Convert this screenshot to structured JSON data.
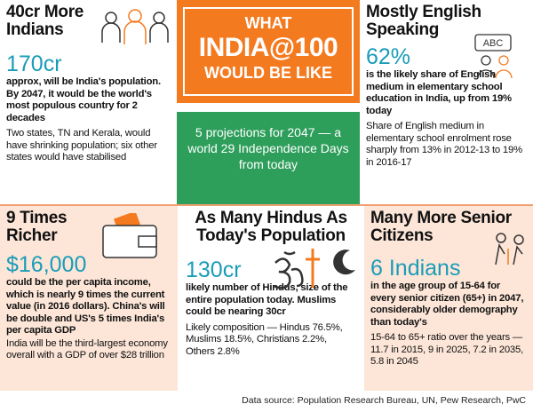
{
  "header": {
    "line1": "WHAT",
    "line2": "INDIA@100",
    "line3": "WOULD BE LIKE",
    "subtitle": "5 projections for 2047 — a world 29 Independence Days from today"
  },
  "panels": [
    {
      "title": "40cr More Indians",
      "figure": "170cr",
      "lead": "approx, will be India's population. By 2047, it would be the world's most populous country for 2 decades",
      "note": "Two states, TN and Kerala, would have shrinking population; six other states would have stabilised"
    },
    {
      "title": "Mostly English Speaking",
      "icon_label": "ABC",
      "figure": "62%",
      "lead": "is the likely share of English medium in elementary school education in India, up from 19% today",
      "note": "Share of English medium in elementary school enrolment rose sharply from 13% in 2012-13 to 19% in 2016-17"
    },
    {
      "title": "9 Times Richer",
      "figure": "$16,000",
      "lead": "could be the per capita income, which is nearly 9 times the current value (in 2016 dollars). China's will be double and US's 5 times India's per capita GDP",
      "note": "India will be the third-largest economy overall with a GDP of over $28 trillion"
    },
    {
      "title": "As Many Hindus As Today's Population",
      "figure": "130cr",
      "lead": "likely number of Hindus, size of the entire population today. Muslims could be nearing 30cr",
      "note": "Likely composition — Hindus 76.5%, Muslims 18.5%, Christians 2.2%, Others 2.8%"
    },
    {
      "title": "Many More Senior Citizens",
      "figure": "6 Indians",
      "lead": "in the age group of 15-64 for every senior citizen (65+) in 2047, considerably older demography than today's",
      "note": "15-64 to 65+ ratio over the years — 11.7 in 2015, 9 in 2025, 7.2 in 2035, 5.8 in 2045"
    }
  ],
  "source": "Data source: Population Research Bureau, UN, Pew Research, PwC"
}
